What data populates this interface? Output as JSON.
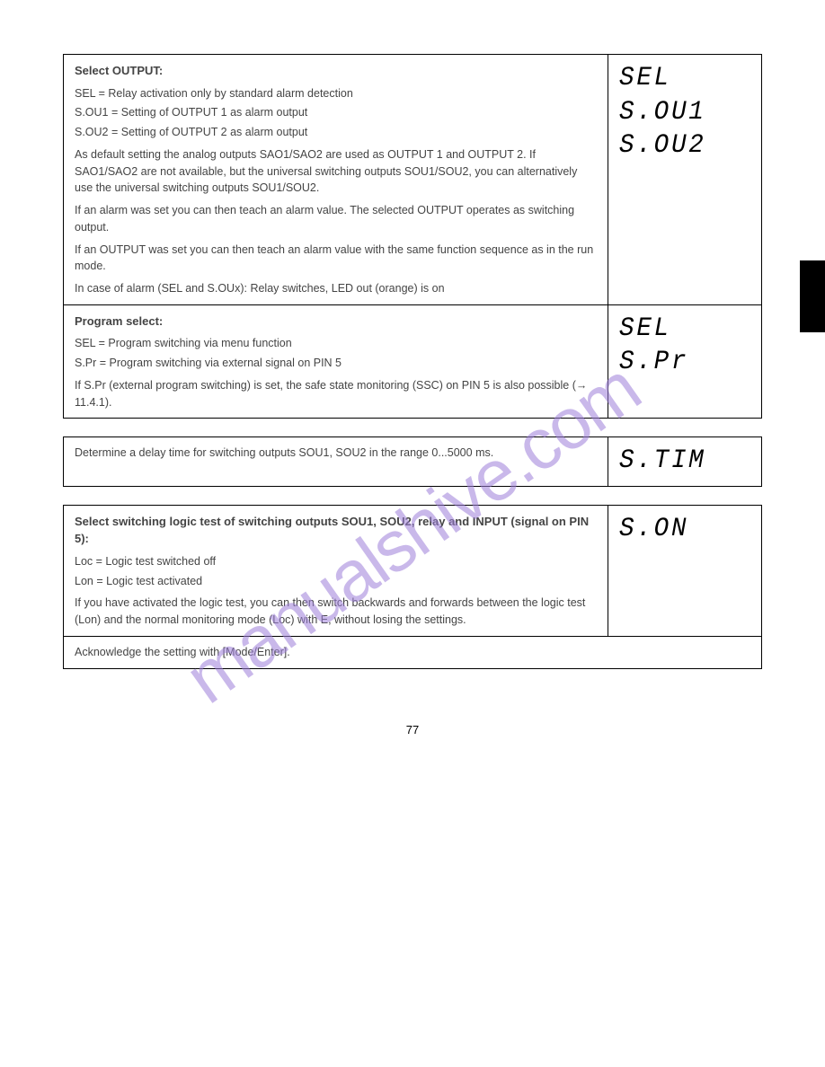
{
  "watermark": "manualshive.com",
  "page_number": "77",
  "black_tab": {
    "height": 80,
    "color": "#000000"
  },
  "table1": {
    "rows": [
      {
        "desc": {
          "title": "Select OUTPUT:",
          "lines": [
            "SEL = Relay activation only by standard alarm detection",
            "S.OU1 = Setting of OUTPUT 1 as alarm output",
            "S.OU2 = Setting of OUTPUT 2 as alarm output"
          ],
          "notes": [
            "As default setting the analog outputs SAO1/SAO2 are used as OUTPUT 1 and OUTPUT 2. If SAO1/SAO2 are not available, but the universal switching outputs SOU1/SOU2, you can alternatively use the universal switching outputs SOU1/SOU2.",
            "If an alarm was set you can then teach an alarm value. The selected OUTPUT operates as switching output.",
            "If an OUTPUT was set you can then teach an alarm value with the same function sequence as in the run mode.",
            "In case of alarm (SEL and S.OUx): Relay switches, LED out (orange) is on"
          ]
        },
        "codes": [
          "SEL",
          "S.OU1",
          "S.OU2"
        ]
      },
      {
        "desc": {
          "title": "Program select:",
          "lines": [
            "SEL = Program switching via menu function",
            "S.Pr = Program switching via external signal on PIN 5"
          ],
          "notes": [
            "If S.Pr (external program switching) is set, the safe state monitoring (SSC) on PIN 5 is also possible (→ 11.4.1)."
          ]
        },
        "codes": [
          "SEL",
          "S.Pr"
        ]
      }
    ]
  },
  "table2": {
    "rows": [
      {
        "desc": "Determine a delay time for switching outputs SOU1, SOU2 in the range 0...5000 ms.",
        "codes": [
          "S.TIM"
        ]
      }
    ]
  },
  "table3": {
    "rows": [
      {
        "desc": {
          "title": "Select switching logic test of switching outputs SOU1, SOU2, relay and INPUT (signal on PIN 5):",
          "lines": [
            "Loc = Logic test switched off",
            "Lon = Logic test activated"
          ],
          "notes": [
            "If you have activated the logic test, you can then switch backwards and forwards between the logic test (Lon) and the normal monitoring mode (Loc) with E, without losing the settings."
          ]
        },
        "codes": [
          "S.ON"
        ]
      },
      {
        "desc": "Acknowledge the setting with [Mode/Enter].",
        "codes": []
      }
    ]
  }
}
